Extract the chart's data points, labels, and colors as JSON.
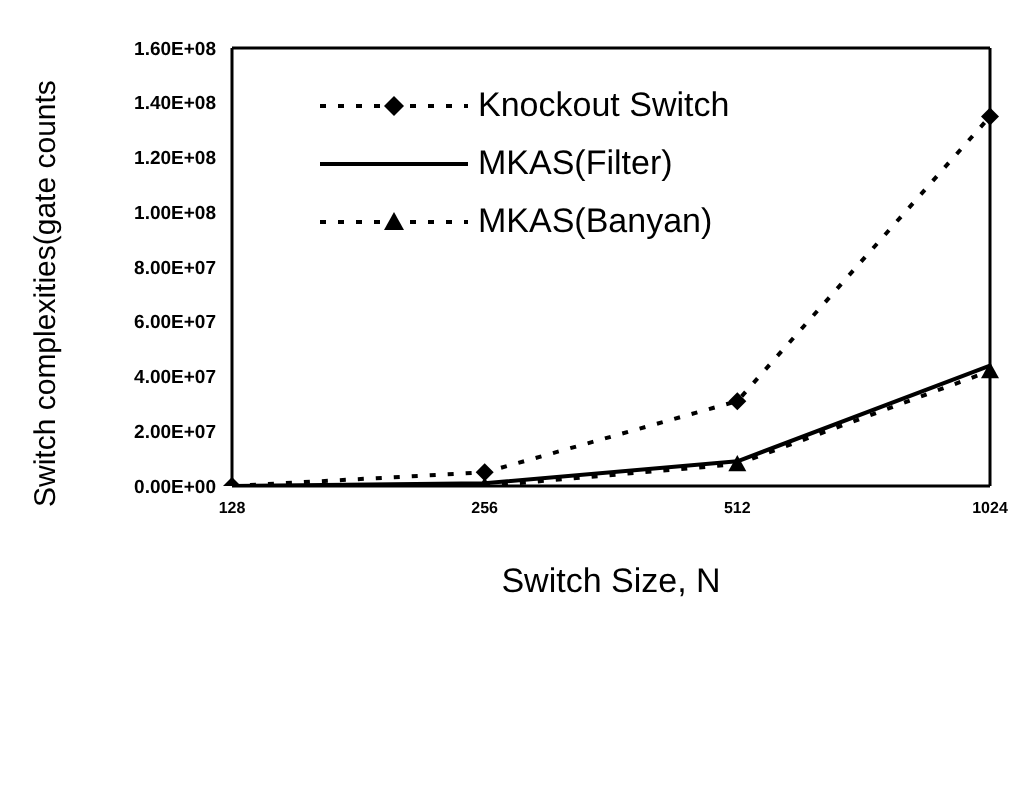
{
  "chart_data": {
    "type": "line",
    "xlabel": "Switch Size, N",
    "ylabel": "Switch complexities(gate counts",
    "categories": [
      "128",
      "256",
      "512",
      "1024"
    ],
    "series": [
      {
        "name": "Knockout Switch",
        "color": "#000000",
        "marker": "diamond",
        "line_style": "dotted",
        "values": [
          0,
          5000000,
          31000000,
          135000000
        ]
      },
      {
        "name": "MKAS(Filter)",
        "color": "#000000",
        "marker": "none",
        "line_style": "solid",
        "values": [
          0,
          1000000,
          9000000,
          44000000
        ]
      },
      {
        "name": "MKAS(Banyan)",
        "color": "#000000",
        "marker": "triangle",
        "line_style": "dotted",
        "values": [
          0,
          0,
          8000000,
          42000000
        ]
      }
    ],
    "ylim": [
      0,
      160000000
    ],
    "yticks": [
      {
        "value": 0,
        "label": "0.00E+00"
      },
      {
        "value": 20000000,
        "label": "2.00E+07"
      },
      {
        "value": 40000000,
        "label": "4.00E+07"
      },
      {
        "value": 60000000,
        "label": "6.00E+07"
      },
      {
        "value": 80000000,
        "label": "8.00E+07"
      },
      {
        "value": 100000000,
        "label": "1.00E+08"
      },
      {
        "value": 120000000,
        "label": "1.20E+08"
      },
      {
        "value": 140000000,
        "label": "1.40E+08"
      },
      {
        "value": 160000000,
        "label": "1.60E+08"
      }
    ],
    "legend": "top",
    "grid": false
  }
}
